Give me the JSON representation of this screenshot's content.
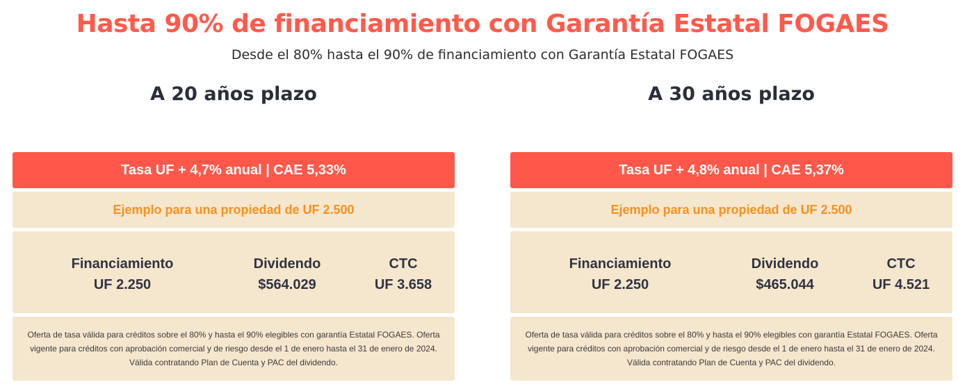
{
  "header": {
    "title": "Hasta 90% de financiamiento con Garantía Estatal FOGAES",
    "subtitle": "Desde el 80% hasta el 90% de financiamiento con Garantía Estatal FOGAES"
  },
  "colors": {
    "accent": "#ff5a4b",
    "rate_bar": "#ff584a",
    "beige": "#f5e6ce",
    "example_text": "#f7911e"
  },
  "plans": [
    {
      "term": "A 20 años plazo",
      "rate": "Tasa UF + 4,7% anual | CAE 5,33%",
      "example": "Ejemplo para una propiedad de UF 2.500",
      "metrics": [
        {
          "label": "Financiamiento",
          "value": "UF 2.250"
        },
        {
          "label": "Dividendo",
          "value": "$564.029"
        },
        {
          "label": "CTC",
          "value": "UF 3.658"
        }
      ],
      "note": "Oferta de tasa válida para créditos sobre el 80% y hasta el 90% elegibles con garantía Estatal FOGAES. Oferta vigente para créditos con aprobación comercial y de riesgo desde el 1 de enero hasta el 31 de enero de 2024. Válida contratando Plan de Cuenta y PAC del dividendo."
    },
    {
      "term": "A 30 años plazo",
      "rate": "Tasa UF + 4,8% anual | CAE 5,37%",
      "example": "Ejemplo para una propiedad de UF 2.500",
      "metrics": [
        {
          "label": "Financiamiento",
          "value": "UF 2.250"
        },
        {
          "label": "Dividendo",
          "value": "$465.044"
        },
        {
          "label": "CTC",
          "value": "UF 4.521"
        }
      ],
      "note": "Oferta de tasa válida para créditos sobre el 80% y hasta el 90% elegibles con garantía Estatal FOGAES. Oferta vigente para créditos con aprobación comercial y de riesgo desde el 1 de enero hasta el 31 de enero de 2024. Válida contratando Plan de Cuenta y PAC del dividendo."
    }
  ]
}
